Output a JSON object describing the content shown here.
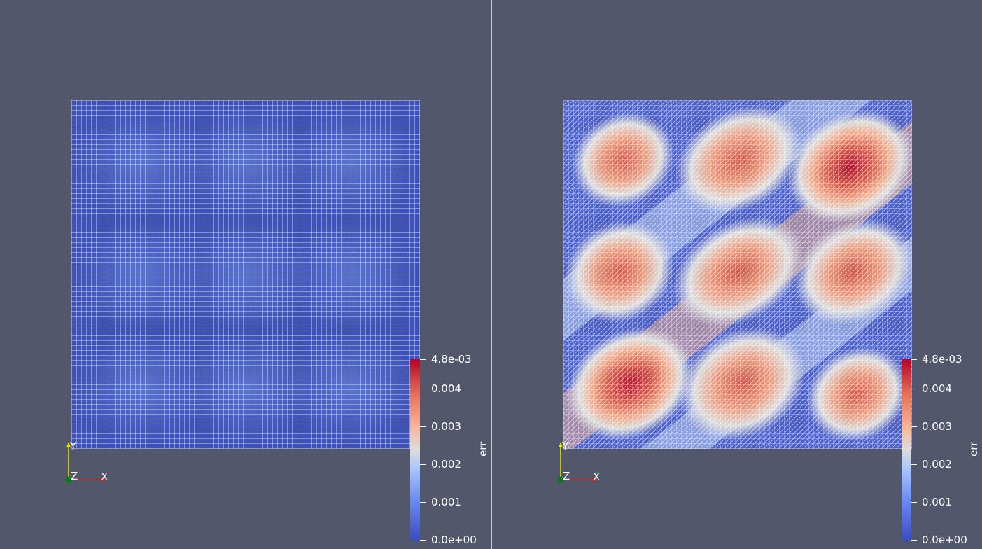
{
  "views": [
    {
      "id": "left",
      "colorbar": {
        "title": "err",
        "labels": [
          "4.8e-03",
          "0.004",
          "0.003",
          "0.002",
          "0.001",
          "0.0e+00"
        ]
      },
      "axes": {
        "x": "X",
        "y": "Y",
        "z": "Z"
      }
    },
    {
      "id": "right",
      "colorbar": {
        "title": "err",
        "labels": [
          "4.8e-03",
          "0.004",
          "0.003",
          "0.002",
          "0.001",
          "0.0e+00"
        ]
      },
      "axes": {
        "x": "X",
        "y": "Y",
        "z": "Z"
      }
    }
  ],
  "colors": {
    "background": "#52576b",
    "colormap_low": "#3b4cc0",
    "colormap_mid": "#dddcdc",
    "colormap_high": "#b40426",
    "axis_x": "#e01b1b",
    "axis_y": "#e6e600",
    "axis_z": "#0a7a1a"
  },
  "icons": {
    "orientation_axes": "xyz-triad-icon"
  }
}
